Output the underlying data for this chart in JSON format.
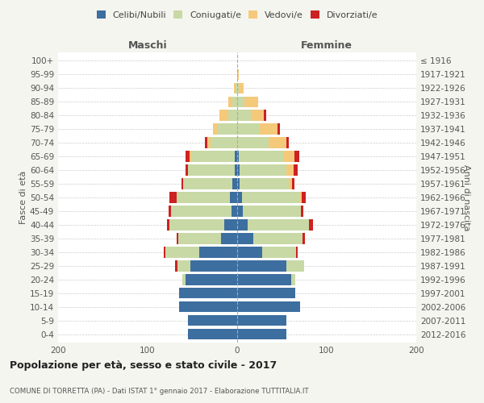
{
  "age_groups": [
    "0-4",
    "5-9",
    "10-14",
    "15-19",
    "20-24",
    "25-29",
    "30-34",
    "35-39",
    "40-44",
    "45-49",
    "50-54",
    "55-59",
    "60-64",
    "65-69",
    "70-74",
    "75-79",
    "80-84",
    "85-89",
    "90-94",
    "95-99",
    "100+"
  ],
  "birth_years": [
    "2012-2016",
    "2007-2011",
    "2002-2006",
    "1997-2001",
    "1992-1996",
    "1987-1991",
    "1982-1986",
    "1977-1981",
    "1972-1976",
    "1967-1971",
    "1962-1966",
    "1957-1961",
    "1952-1956",
    "1947-1951",
    "1942-1946",
    "1937-1941",
    "1932-1936",
    "1927-1931",
    "1922-1926",
    "1917-1921",
    "≤ 1916"
  ],
  "maschi": {
    "celibi": [
      55,
      55,
      65,
      65,
      58,
      52,
      42,
      18,
      14,
      6,
      8,
      5,
      3,
      3,
      0,
      0,
      0,
      0,
      0,
      0,
      0
    ],
    "coniugati": [
      0,
      0,
      0,
      0,
      3,
      15,
      38,
      48,
      62,
      68,
      60,
      55,
      52,
      48,
      30,
      22,
      10,
      5,
      2,
      0,
      0
    ],
    "vedovi": [
      0,
      0,
      0,
      0,
      0,
      0,
      0,
      0,
      0,
      0,
      0,
      0,
      0,
      2,
      3,
      5,
      10,
      5,
      2,
      0,
      0
    ],
    "divorziati": [
      0,
      0,
      0,
      0,
      0,
      2,
      2,
      2,
      2,
      3,
      8,
      2,
      3,
      5,
      3,
      0,
      0,
      0,
      0,
      0,
      0
    ]
  },
  "femmine": {
    "nubili": [
      55,
      55,
      70,
      65,
      60,
      55,
      28,
      18,
      12,
      6,
      5,
      3,
      3,
      2,
      0,
      0,
      0,
      0,
      0,
      0,
      0
    ],
    "coniugate": [
      0,
      0,
      0,
      0,
      5,
      20,
      38,
      55,
      68,
      65,
      65,
      55,
      52,
      50,
      35,
      25,
      15,
      8,
      2,
      0,
      0
    ],
    "vedove": [
      0,
      0,
      0,
      0,
      0,
      0,
      0,
      0,
      0,
      0,
      2,
      3,
      8,
      12,
      20,
      20,
      15,
      15,
      5,
      2,
      0
    ],
    "divorziate": [
      0,
      0,
      0,
      0,
      0,
      0,
      2,
      3,
      5,
      3,
      5,
      3,
      5,
      5,
      3,
      3,
      2,
      0,
      0,
      0,
      0
    ]
  },
  "colors": {
    "celibi": "#3d6ea0",
    "coniugati": "#c8d9a5",
    "vedovi": "#f5c97a",
    "divorziati": "#cc2222"
  },
  "xlim": 200,
  "title": "Popolazione per età, sesso e stato civile - 2017",
  "subtitle": "COMUNE DI TORRETTA (PA) - Dati ISTAT 1° gennaio 2017 - Elaborazione TUTTITALIA.IT",
  "ylabel_left": "Fasce di età",
  "ylabel_right": "Anni di nascita",
  "xlabel_left": "Maschi",
  "xlabel_right": "Femmine",
  "bg_color": "#f5f5ef",
  "plot_bg": "#ffffff",
  "legend_labels": [
    "Celibi/Nubili",
    "Coniugati/e",
    "Vedovi/e",
    "Divorziati/e"
  ]
}
